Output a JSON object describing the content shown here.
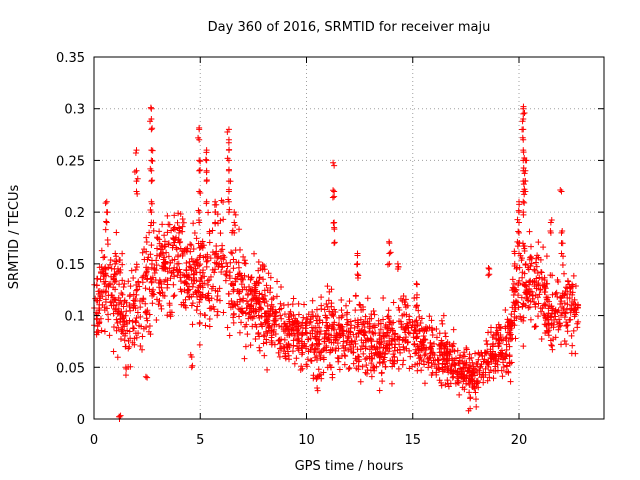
{
  "chart_data": {
    "type": "scatter",
    "title": "Day 360 of 2016, SRMTID for receiver maju",
    "xlabel": "GPS time / hours",
    "ylabel": "SRMTID / TECUs",
    "xlim": [
      0,
      24
    ],
    "ylim": [
      0,
      0.35
    ],
    "x_ticks": [
      "0",
      "5",
      "10",
      "15",
      "20"
    ],
    "y_ticks": [
      "0",
      "0.05",
      "0.1",
      "0.15",
      "0.2",
      "0.25",
      "0.3",
      "0.35"
    ],
    "grid": true,
    "marker": "+",
    "marker_color": "#ff0000",
    "envelope": {
      "hours": [
        0,
        0.5,
        1,
        1.5,
        2,
        2.5,
        3,
        3.5,
        4,
        4.5,
        5,
        5.5,
        6,
        6.5,
        7,
        7.5,
        8,
        8.5,
        9,
        9.5,
        10,
        10.5,
        11,
        11.5,
        12,
        12.5,
        13,
        13.5,
        14,
        14.5,
        15,
        15.5,
        16,
        16.5,
        17,
        17.5,
        18,
        18.5,
        19,
        19.5,
        20,
        20.5,
        21,
        21.5,
        22,
        22.5,
        22.8
      ],
      "center": [
        0.11,
        0.13,
        0.12,
        0.09,
        0.11,
        0.13,
        0.14,
        0.145,
        0.15,
        0.14,
        0.14,
        0.14,
        0.15,
        0.13,
        0.12,
        0.11,
        0.11,
        0.095,
        0.085,
        0.08,
        0.08,
        0.075,
        0.085,
        0.08,
        0.08,
        0.085,
        0.075,
        0.07,
        0.08,
        0.09,
        0.085,
        0.075,
        0.065,
        0.06,
        0.05,
        0.045,
        0.04,
        0.06,
        0.07,
        0.07,
        0.13,
        0.14,
        0.12,
        0.1,
        0.11,
        0.105,
        0.1
      ],
      "spread": [
        0.035,
        0.04,
        0.04,
        0.035,
        0.04,
        0.045,
        0.045,
        0.04,
        0.04,
        0.04,
        0.045,
        0.045,
        0.05,
        0.045,
        0.04,
        0.035,
        0.035,
        0.03,
        0.03,
        0.03,
        0.03,
        0.03,
        0.035,
        0.03,
        0.035,
        0.035,
        0.03,
        0.03,
        0.035,
        0.035,
        0.03,
        0.025,
        0.025,
        0.025,
        0.02,
        0.02,
        0.02,
        0.025,
        0.025,
        0.03,
        0.05,
        0.045,
        0.04,
        0.035,
        0.04,
        0.035,
        0.03
      ]
    },
    "bursts": [
      {
        "x": 0.6,
        "y": [
          0.2,
          0.21,
          0.19
        ]
      },
      {
        "x": 1.0,
        "y": [
          0.15,
          0.16,
          0.14
        ]
      },
      {
        "x": 1.2,
        "y": [
          0.0,
          0.002
        ]
      },
      {
        "x": 1.5,
        "y": [
          0.05,
          0.07
        ]
      },
      {
        "x": 2.0,
        "y": [
          0.23,
          0.24,
          0.22,
          0.26
        ]
      },
      {
        "x": 2.5,
        "y": [
          0.04
        ]
      },
      {
        "x": 2.7,
        "y": [
          0.3,
          0.29,
          0.28,
          0.26,
          0.25,
          0.24,
          0.23,
          0.21,
          0.2,
          0.19
        ]
      },
      {
        "x": 4.0,
        "y": [
          0.18,
          0.185
        ]
      },
      {
        "x": 4.6,
        "y": [
          0.05,
          0.06
        ]
      },
      {
        "x": 4.95,
        "y": [
          0.28,
          0.27,
          0.25,
          0.24,
          0.22,
          0.2,
          0.19
        ]
      },
      {
        "x": 5.3,
        "y": [
          0.26,
          0.25,
          0.24,
          0.23,
          0.21
        ]
      },
      {
        "x": 5.7,
        "y": [
          0.21,
          0.2,
          0.19
        ]
      },
      {
        "x": 6.35,
        "y": [
          0.28,
          0.27,
          0.26,
          0.25,
          0.24,
          0.23,
          0.22,
          0.21,
          0.2
        ]
      },
      {
        "x": 6.6,
        "y": [
          0.2,
          0.19,
          0.18
        ]
      },
      {
        "x": 10.5,
        "y": [
          0.03,
          0.04
        ]
      },
      {
        "x": 11.3,
        "y": [
          0.245,
          0.22,
          0.215,
          0.19,
          0.185,
          0.17
        ]
      },
      {
        "x": 12.4,
        "y": [
          0.16,
          0.15,
          0.14
        ]
      },
      {
        "x": 13.9,
        "y": [
          0.17,
          0.16,
          0.15
        ]
      },
      {
        "x": 14.3,
        "y": [
          0.15,
          0.145
        ]
      },
      {
        "x": 15.2,
        "y": [
          0.12,
          0.11,
          0.13
        ]
      },
      {
        "x": 17.7,
        "y": [
          0.01,
          0.02
        ]
      },
      {
        "x": 18.6,
        "y": [
          0.145,
          0.14
        ]
      },
      {
        "x": 19.8,
        "y": [
          0.16,
          0.15
        ]
      },
      {
        "x": 20.0,
        "y": [
          0.16,
          0.17,
          0.18,
          0.19,
          0.2,
          0.21
        ]
      },
      {
        "x": 20.2,
        "y": [
          0.3,
          0.295,
          0.29,
          0.28,
          0.27,
          0.26,
          0.25,
          0.24,
          0.23,
          0.22,
          0.21,
          0.2
        ]
      },
      {
        "x": 20.3,
        "y": [
          0.25,
          0.24,
          0.23,
          0.22
        ]
      },
      {
        "x": 21.5,
        "y": [
          0.19,
          0.18
        ]
      },
      {
        "x": 22.0,
        "y": [
          0.22,
          0.18,
          0.17,
          0.16
        ]
      },
      {
        "x": 22.5,
        "y": [
          0.13,
          0.12
        ]
      }
    ]
  }
}
